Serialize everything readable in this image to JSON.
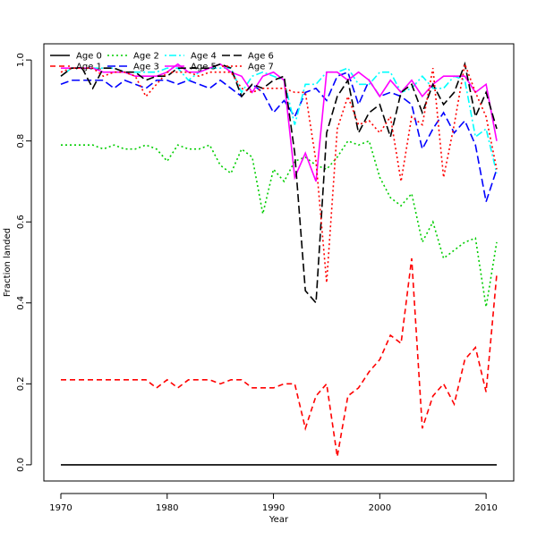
{
  "chart_data": {
    "type": "line",
    "title": "",
    "xlabel": "Year",
    "ylabel": "Fraction landed",
    "xlim": [
      1968.4,
      1972.6
    ],
    "ylim": [
      -0.04,
      1.04
    ],
    "x_ticks": [
      1970,
      1980,
      1990,
      2000,
      2010
    ],
    "y_ticks": [
      0.0,
      0.2,
      0.4,
      0.6,
      0.8,
      1.0
    ],
    "x_tick_labels": [
      "1970",
      "1980",
      "1990",
      "2000",
      "2010"
    ],
    "y_tick_labels": [
      "0.0",
      "0.2",
      "0.4",
      "0.6",
      "0.8",
      "1.0"
    ],
    "legend_position": "top-left",
    "years": [
      1970,
      1971,
      1972,
      1973,
      1974,
      1975,
      1976,
      1977,
      1978,
      1979,
      1980,
      1981,
      1982,
      1983,
      1984,
      1985,
      1986,
      1987,
      1988,
      1989,
      1990,
      1991,
      1992,
      1993,
      1994,
      1995,
      1996,
      1997,
      1998,
      1999,
      2000,
      2001,
      2002,
      2003,
      2004,
      2005,
      2006,
      2007,
      2008,
      2009,
      2010,
      2011
    ],
    "series": [
      {
        "name": "Age 0",
        "color": "#000000",
        "dash": "solid",
        "values": [
          0,
          0,
          0,
          0,
          0,
          0,
          0,
          0,
          0,
          0,
          0,
          0,
          0,
          0,
          0,
          0,
          0,
          0,
          0,
          0,
          0,
          0,
          0,
          0,
          0,
          0,
          0,
          0,
          0,
          0,
          0,
          0,
          0,
          0,
          0,
          0,
          0,
          0,
          0,
          0,
          0,
          0
        ]
      },
      {
        "name": "Age 1",
        "color": "#ff0000",
        "dash": "dashed",
        "values": [
          0.21,
          0.21,
          0.21,
          0.21,
          0.21,
          0.21,
          0.21,
          0.21,
          0.21,
          0.19,
          0.21,
          0.19,
          0.21,
          0.21,
          0.21,
          0.2,
          0.21,
          0.21,
          0.19,
          0.19,
          0.19,
          0.2,
          0.2,
          0.09,
          0.17,
          0.2,
          0.02,
          0.17,
          0.19,
          0.23,
          0.26,
          0.32,
          0.3,
          0.51,
          0.09,
          0.17,
          0.2,
          0.15,
          0.26,
          0.29,
          0.18,
          0.47
        ]
      },
      {
        "name": "Age 2",
        "color": "#00cd00",
        "dash": "dotted",
        "values": [
          0.79,
          0.79,
          0.79,
          0.79,
          0.78,
          0.79,
          0.78,
          0.78,
          0.79,
          0.78,
          0.75,
          0.79,
          0.78,
          0.78,
          0.79,
          0.74,
          0.72,
          0.78,
          0.76,
          0.62,
          0.73,
          0.7,
          0.75,
          0.76,
          0.74,
          0.73,
          0.76,
          0.8,
          0.79,
          0.8,
          0.71,
          0.66,
          0.64,
          0.67,
          0.55,
          0.6,
          0.51,
          0.53,
          0.55,
          0.56,
          0.39,
          0.55
        ]
      },
      {
        "name": "Age 3",
        "color": "#0000ff",
        "dash": "longdash",
        "values": [
          0.94,
          0.95,
          0.95,
          0.95,
          0.95,
          0.93,
          0.95,
          0.94,
          0.93,
          0.95,
          0.95,
          0.94,
          0.95,
          0.94,
          0.93,
          0.95,
          0.93,
          0.91,
          0.94,
          0.92,
          0.87,
          0.9,
          0.86,
          0.92,
          0.93,
          0.9,
          0.96,
          0.97,
          0.89,
          0.95,
          0.91,
          0.92,
          0.91,
          0.89,
          0.78,
          0.83,
          0.87,
          0.82,
          0.85,
          0.79,
          0.65,
          0.73
        ]
      },
      {
        "name": "Age 4",
        "color": "#00ffff",
        "dash": "dotdash",
        "values": [
          0.96,
          0.98,
          0.98,
          0.98,
          0.98,
          0.98,
          0.97,
          0.97,
          0.97,
          0.97,
          0.98,
          0.98,
          0.95,
          0.97,
          0.98,
          0.98,
          0.98,
          0.92,
          0.96,
          0.97,
          0.96,
          0.95,
          0.84,
          0.94,
          0.94,
          0.97,
          0.97,
          0.98,
          0.94,
          0.94,
          0.97,
          0.97,
          0.92,
          0.93,
          0.96,
          0.93,
          0.93,
          0.96,
          0.95,
          0.81,
          0.83,
          0.72
        ]
      },
      {
        "name": "Age 5",
        "color": "#ff00ff",
        "dash": "solid",
        "values": [
          0.98,
          0.98,
          0.98,
          0.98,
          0.97,
          0.97,
          0.97,
          0.96,
          0.96,
          0.96,
          0.97,
          0.99,
          0.97,
          0.97,
          0.98,
          0.99,
          0.97,
          0.96,
          0.92,
          0.96,
          0.97,
          0.95,
          0.71,
          0.77,
          0.7,
          0.97,
          0.97,
          0.95,
          0.97,
          0.95,
          0.91,
          0.95,
          0.92,
          0.95,
          0.91,
          0.94,
          0.96,
          0.96,
          0.96,
          0.92,
          0.94,
          0.8
        ]
      },
      {
        "name": "Age 6",
        "color": "#000000",
        "dash": "longdash",
        "values": [
          0.96,
          0.98,
          0.98,
          0.93,
          0.98,
          0.98,
          0.97,
          0.97,
          0.95,
          0.96,
          0.96,
          0.98,
          0.98,
          0.98,
          0.98,
          0.99,
          0.98,
          0.91,
          0.94,
          0.93,
          0.95,
          0.96,
          0.77,
          0.43,
          0.4,
          0.82,
          0.91,
          0.95,
          0.82,
          0.87,
          0.89,
          0.81,
          0.92,
          0.94,
          0.87,
          0.94,
          0.89,
          0.92,
          0.99,
          0.86,
          0.92,
          0.83
        ]
      },
      {
        "name": "Age 7",
        "color": "#ff0000",
        "dash": "dotted",
        "values": [
          0.97,
          0.98,
          0.98,
          0.98,
          0.96,
          0.97,
          0.97,
          0.96,
          0.91,
          0.94,
          0.97,
          0.97,
          0.97,
          0.96,
          0.97,
          0.97,
          0.97,
          0.93,
          0.92,
          0.93,
          0.93,
          0.93,
          0.92,
          0.92,
          0.75,
          0.45,
          0.83,
          0.91,
          0.84,
          0.85,
          0.82,
          0.86,
          0.7,
          0.86,
          0.84,
          0.98,
          0.71,
          0.84,
          0.99,
          0.92,
          0.86,
          0.73
        ]
      }
    ]
  }
}
